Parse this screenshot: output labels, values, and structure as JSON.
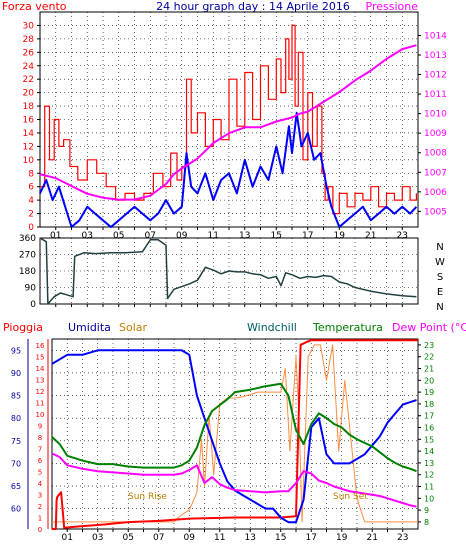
{
  "page": {
    "title": "24 hour graph day : 14 Aprile 2016",
    "background": "#ffffff",
    "plot_background": "#ffffff"
  },
  "chart_data": [
    {
      "name": "panel-wind-pressure",
      "type": "line",
      "left_label": "Forza vento",
      "right_label": "Pressione",
      "x_ticks": [
        "01",
        "03",
        "05",
        "07",
        "09",
        "11",
        "13",
        "15",
        "17",
        "19",
        "21",
        "23"
      ],
      "y_left_range": [
        0,
        32
      ],
      "y_left_ticks": [
        "0",
        "2",
        "4",
        "6",
        "8",
        "10",
        "12",
        "14",
        "16",
        "18",
        "20",
        "22",
        "24",
        "26",
        "28",
        "30"
      ],
      "y_right_range": [
        1004.2,
        1015.2
      ],
      "y_right_ticks": [
        "1005",
        "1006",
        "1007",
        "1008",
        "1009",
        "1010",
        "1011",
        "1012",
        "1013",
        "1014"
      ],
      "grid": true,
      "series": [
        {
          "color": "#ff0000",
          "axis": "left",
          "x": [
            0.0,
            0.3,
            0.6,
            0.9,
            1.2,
            1.5,
            1.9,
            2.4,
            3.0,
            3.6,
            4.2,
            4.8,
            5.4,
            6.0,
            6.6,
            7.2,
            7.8,
            8.3,
            8.7,
            9.0,
            9.3,
            9.6,
            10.0,
            10.5,
            11.0,
            11.5,
            12.0,
            12.5,
            13.0,
            13.5,
            14.0,
            14.5,
            15.0,
            15.3,
            15.6,
            15.8,
            16.0,
            16.2,
            16.4,
            16.7,
            17.0,
            17.3,
            17.6,
            17.9,
            18.1,
            18.3,
            18.6,
            19.0,
            19.5,
            20.0,
            20.5,
            21.0,
            21.5,
            22.0,
            22.5,
            23.0,
            23.5,
            23.9
          ],
          "y": [
            6,
            18,
            10,
            16,
            12,
            13,
            9,
            7,
            10,
            8,
            6,
            4,
            5,
            4,
            5,
            8,
            6,
            11,
            7,
            9,
            22,
            14,
            17,
            12,
            16,
            13,
            22,
            15,
            23,
            16,
            24,
            19,
            25,
            20,
            28,
            22,
            30,
            18,
            26,
            10,
            20,
            12,
            18,
            8,
            4,
            6,
            2,
            5,
            3,
            5,
            4,
            6,
            3,
            5,
            4,
            6,
            4,
            5
          ]
        },
        {
          "color": "#0000ff",
          "axis": "left",
          "x": [
            0.0,
            0.4,
            0.8,
            1.2,
            1.6,
            2.0,
            2.5,
            3.0,
            3.5,
            4.0,
            4.5,
            5.0,
            5.5,
            6.0,
            6.5,
            7.0,
            7.5,
            8.0,
            8.5,
            9.0,
            9.3,
            9.6,
            10.0,
            10.5,
            11.0,
            11.5,
            12.0,
            12.5,
            13.0,
            13.5,
            14.0,
            14.5,
            15.0,
            15.4,
            15.8,
            16.0,
            16.3,
            16.6,
            17.0,
            17.4,
            17.8,
            18.2,
            18.5,
            19.0,
            19.5,
            20.0,
            20.5,
            21.0,
            21.5,
            22.0,
            22.5,
            23.0,
            23.5,
            23.9
          ],
          "y": [
            5,
            7,
            4,
            6,
            3,
            0,
            1,
            3,
            2,
            1,
            0,
            1,
            2,
            3,
            2,
            1,
            2,
            4,
            2,
            3,
            11,
            6,
            5,
            8,
            4,
            7,
            8,
            5,
            10,
            6,
            9,
            7,
            12,
            8,
            15,
            11,
            17,
            12,
            14,
            10,
            11,
            6,
            3,
            0,
            1,
            2,
            3,
            1,
            2,
            3,
            2,
            3,
            2,
            3
          ]
        },
        {
          "color": "#ff00ff",
          "axis": "right",
          "x": [
            0.0,
            1.0,
            2.0,
            3.0,
            4.0,
            5.0,
            6.0,
            7.0,
            8.0,
            8.5,
            9.0,
            10.0,
            11.0,
            12.0,
            13.0,
            14.0,
            15.0,
            16.0,
            16.5,
            17.0,
            18.0,
            19.0,
            20.0,
            21.0,
            22.0,
            23.0,
            23.9
          ],
          "y": [
            1006.9,
            1006.7,
            1006.3,
            1005.9,
            1005.7,
            1005.6,
            1005.6,
            1005.8,
            1006.4,
            1006.9,
            1007.2,
            1007.7,
            1008.5,
            1009.0,
            1009.3,
            1009.3,
            1009.6,
            1009.8,
            1010.0,
            1010.1,
            1010.6,
            1011.1,
            1011.7,
            1012.2,
            1012.8,
            1013.3,
            1013.5
          ]
        }
      ]
    },
    {
      "name": "panel-wind-direction",
      "type": "line",
      "y_left_range": [
        0,
        360
      ],
      "y_left_ticks": [
        "0",
        "90",
        "180",
        "270",
        "360"
      ],
      "y_right_ticks": [
        "N",
        "E",
        "S",
        "W",
        "N"
      ],
      "grid": true,
      "series": [
        {
          "color": "#204040",
          "axis": "left",
          "x": [
            0.0,
            0.4,
            0.5,
            0.7,
            0.9,
            1.3,
            1.7,
            2.1,
            2.2,
            2.8,
            3.5,
            4.5,
            5.5,
            6.5,
            7.0,
            7.5,
            8.0,
            8.1,
            8.5,
            9.0,
            9.5,
            10.0,
            10.5,
            11.0,
            11.5,
            12.0,
            12.5,
            13.0,
            13.5,
            14.0,
            14.5,
            15.0,
            15.3,
            15.6,
            16.0,
            16.5,
            17.0,
            17.5,
            18.0,
            18.5,
            19.0,
            19.5,
            20.0,
            21.0,
            22.0,
            23.0,
            23.9
          ],
          "y": [
            360,
            340,
            0,
            20,
            40,
            60,
            50,
            40,
            260,
            280,
            275,
            280,
            280,
            285,
            350,
            350,
            320,
            30,
            80,
            95,
            110,
            130,
            200,
            185,
            165,
            180,
            175,
            175,
            165,
            160,
            140,
            150,
            100,
            170,
            160,
            140,
            150,
            145,
            155,
            150,
            120,
            110,
            90,
            70,
            55,
            45,
            40
          ]
        }
      ]
    },
    {
      "name": "panel-temperature-humidity",
      "type": "line",
      "legend": [
        "Pioggia",
        "Umidita",
        "Solar",
        "Windchill",
        "Temperatura",
        "Dew Point (°C)"
      ],
      "y_left_range": [
        55.5,
        97.5
      ],
      "y_left_ticks": [
        "60",
        "65",
        "70",
        "75",
        "80",
        "85",
        "90",
        "95"
      ],
      "y_rain_range": [
        0,
        16.5
      ],
      "y_rain_ticks": [
        "0",
        "1",
        "2",
        "3",
        "4",
        "5",
        "6",
        "7",
        "8",
        "9",
        "10",
        "11",
        "12",
        "13",
        "14",
        "15",
        "16"
      ],
      "y_right_range": [
        7.4,
        23.5
      ],
      "y_right_ticks": [
        "8",
        "9",
        "10",
        "11",
        "12",
        "13",
        "14",
        "15",
        "16",
        "17",
        "18",
        "19",
        "20",
        "21",
        "22",
        "23"
      ],
      "grid": true,
      "annotations": [
        "Sun Rise",
        "Sun Set"
      ],
      "series": [
        {
          "name": "Umidita",
          "color": "#0000ff",
          "axis": "left",
          "x": [
            0.0,
            1.0,
            2.0,
            3.0,
            4.0,
            5.0,
            6.0,
            7.0,
            8.0,
            8.5,
            9.0,
            9.5,
            10.0,
            10.5,
            11.0,
            11.5,
            12.0,
            12.5,
            13.0,
            13.5,
            14.0,
            14.5,
            15.0,
            15.5,
            16.0,
            16.5,
            17.0,
            17.5,
            18.0,
            18.5,
            19.0,
            19.5,
            20.0,
            20.5,
            21.0,
            21.5,
            22.0,
            22.5,
            23.0,
            23.9
          ],
          "y": [
            92,
            94,
            94,
            95,
            95,
            95,
            95,
            95,
            95,
            95,
            94,
            85,
            80,
            75,
            70,
            66,
            64,
            63,
            62,
            61,
            60,
            60,
            58,
            57,
            57,
            62,
            78,
            80,
            72,
            70,
            70,
            70,
            71,
            72,
            74,
            76,
            79,
            81,
            83,
            84
          ]
        },
        {
          "name": "Temperatura",
          "color": "#008000",
          "axis": "right",
          "x": [
            0.0,
            0.5,
            1.0,
            2.0,
            3.0,
            4.0,
            5.0,
            6.0,
            7.0,
            8.0,
            8.5,
            9.0,
            9.5,
            10.0,
            10.5,
            11.0,
            11.5,
            12.0,
            13.0,
            14.0,
            15.0,
            15.5,
            16.0,
            16.5,
            17.0,
            17.5,
            18.0,
            18.5,
            19.0,
            19.5,
            20.0,
            20.5,
            21.0,
            21.5,
            22.0,
            22.5,
            23.0,
            23.5,
            23.9
          ],
          "y": [
            15.2,
            14.6,
            13.6,
            13.2,
            12.9,
            12.9,
            12.7,
            12.6,
            12.6,
            12.6,
            12.8,
            13.2,
            14.3,
            16.2,
            17.4,
            17.9,
            18.4,
            19.0,
            19.2,
            19.5,
            19.7,
            18.7,
            15.8,
            14.6,
            16.3,
            17.2,
            16.8,
            16.3,
            16.0,
            15.4,
            15.0,
            14.7,
            14.4,
            13.9,
            13.4,
            13.0,
            12.7,
            12.5,
            12.3
          ]
        },
        {
          "name": "Dew Point (°C)",
          "color": "#ff00ff",
          "axis": "right",
          "x": [
            0.0,
            0.5,
            1.0,
            2.0,
            3.0,
            4.0,
            5.0,
            6.0,
            7.0,
            8.0,
            8.5,
            9.0,
            9.5,
            10.0,
            10.5,
            11.0,
            11.5,
            12.0,
            13.0,
            14.0,
            15.0,
            15.5,
            16.0,
            16.5,
            17.0,
            17.5,
            18.0,
            18.5,
            19.0,
            19.5,
            20.0,
            20.5,
            21.0,
            21.5,
            22.0,
            22.5,
            23.0,
            23.5,
            23.9
          ],
          "y": [
            13.8,
            13.5,
            12.8,
            12.5,
            12.3,
            12.2,
            12.1,
            12.0,
            12.0,
            12.0,
            12.1,
            12.4,
            12.8,
            11.3,
            11.8,
            11.2,
            10.9,
            10.7,
            10.6,
            10.5,
            10.6,
            10.6,
            11.3,
            12.3,
            12.1,
            11.5,
            11.3,
            11.0,
            10.8,
            10.6,
            10.5,
            10.4,
            10.3,
            10.2,
            10.0,
            9.8,
            9.6,
            9.4,
            9.3
          ]
        },
        {
          "name": "Solar",
          "color": "#ff8c40",
          "axis": "right",
          "x": [
            0.0,
            7.0,
            8.0,
            8.5,
            9.0,
            9.5,
            9.8,
            10.0,
            10.3,
            10.6,
            11.0,
            11.5,
            12.0,
            12.5,
            13.0,
            13.5,
            14.0,
            14.5,
            15.0,
            15.3,
            15.6,
            16.0,
            16.2,
            16.4,
            16.8,
            17.2,
            17.6,
            18.0,
            18.4,
            18.8,
            19.2,
            19.6,
            20.0,
            20.5,
            21.0,
            24.0
          ],
          "y": [
            8,
            8,
            8,
            8.6,
            9,
            10.5,
            15,
            11,
            17,
            12,
            18,
            18.5,
            18.5,
            18.6,
            18.8,
            19,
            19,
            19,
            19,
            21,
            14,
            22,
            17,
            8,
            22,
            23,
            23,
            20,
            23,
            14,
            20,
            15,
            10,
            8,
            8,
            8
          ]
        },
        {
          "name": "Pioggia",
          "color": "#ff0000",
          "axis": "rain",
          "x": [
            0.0,
            0.25,
            0.3,
            0.35,
            0.6,
            0.8,
            1.5,
            3.5,
            5.0,
            7.0,
            9.0,
            12.0,
            15.0,
            16.0,
            16.3,
            16.8,
            17.0,
            20.0,
            24.0
          ],
          "y": [
            0,
            0,
            2.5,
            2.8,
            3.2,
            0.1,
            0.2,
            0.4,
            0.6,
            0.7,
            0.9,
            1.0,
            1.0,
            1.1,
            16.0,
            16.3,
            16.4,
            16.4,
            16.4
          ]
        }
      ]
    }
  ]
}
